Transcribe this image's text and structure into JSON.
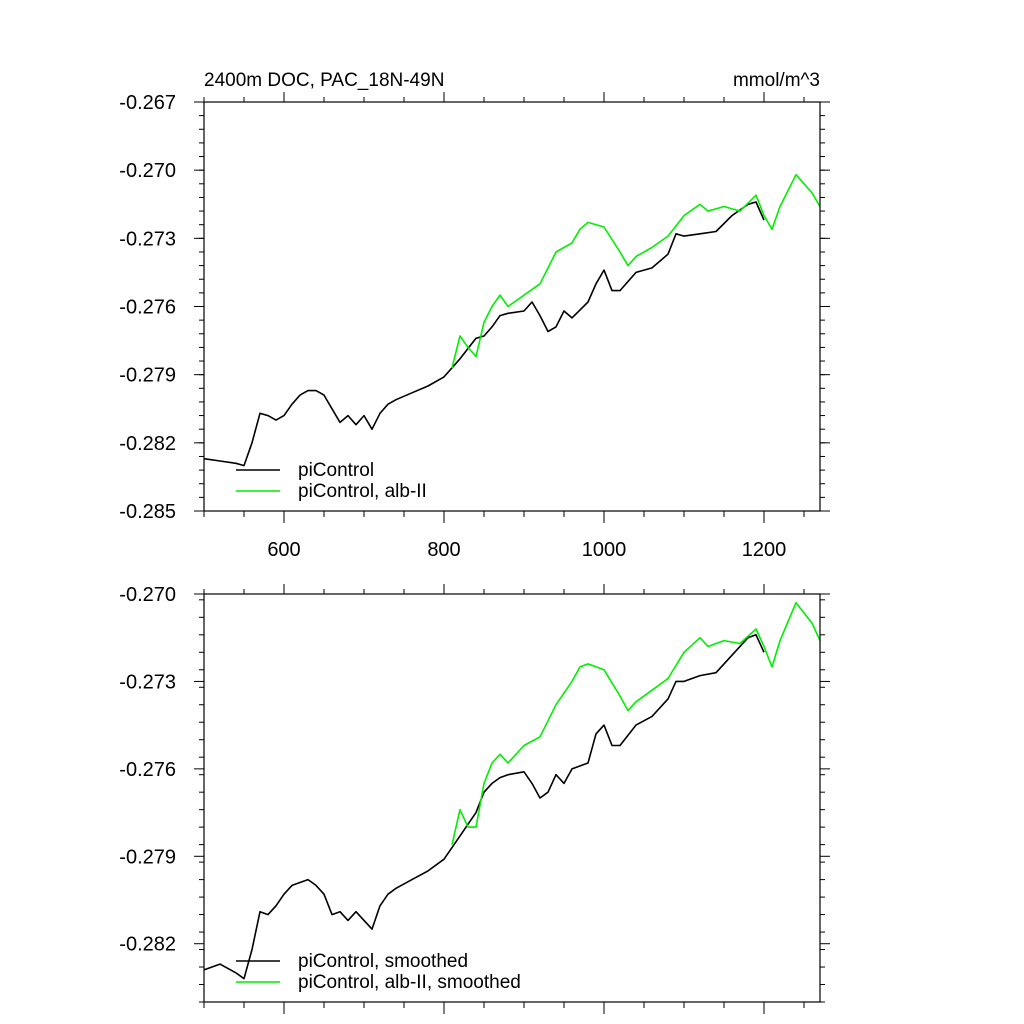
{
  "chart_data": [
    {
      "type": "line",
      "title": "2400m DOC, PAC_18N-49N",
      "units": "mmol/m^3",
      "xlim": [
        500,
        1270
      ],
      "ylim": [
        -0.285,
        -0.267
      ],
      "x_ticks": [
        600,
        800,
        1000,
        1200
      ],
      "x_tick_labels": [
        "600",
        "800",
        "1000",
        "1200"
      ],
      "y_ticks": [
        -0.267,
        -0.27,
        -0.273,
        -0.276,
        -0.279,
        -0.282,
        -0.285
      ],
      "y_tick_labels": [
        "-0.267",
        "-0.270",
        "-0.273",
        "-0.276",
        "-0.279",
        "-0.282",
        "-0.285"
      ],
      "legend": [
        "piControl",
        "piControl, alb-II"
      ],
      "legend_position": "bottom-left",
      "grid": false,
      "series": [
        {
          "name": "piControl",
          "color": "#000000",
          "x": [
            500,
            520,
            540,
            550,
            560,
            570,
            580,
            590,
            600,
            610,
            620,
            630,
            640,
            650,
            660,
            670,
            680,
            690,
            700,
            710,
            720,
            730,
            740,
            760,
            780,
            800,
            820,
            840,
            850,
            860,
            870,
            880,
            900,
            910,
            920,
            930,
            940,
            950,
            960,
            980,
            990,
            1000,
            1010,
            1020,
            1040,
            1060,
            1080,
            1090,
            1100,
            1120,
            1140,
            1160,
            1180,
            1190,
            1200
          ],
          "y": [
            -0.2827,
            -0.2828,
            -0.2829,
            -0.283,
            -0.282,
            -0.2807,
            -0.2808,
            -0.281,
            -0.2808,
            -0.2803,
            -0.2799,
            -0.2797,
            -0.2797,
            -0.2799,
            -0.2805,
            -0.2811,
            -0.2808,
            -0.2812,
            -0.2808,
            -0.2814,
            -0.2807,
            -0.2803,
            -0.2801,
            -0.2798,
            -0.2795,
            -0.2791,
            -0.2783,
            -0.2774,
            -0.2773,
            -0.2769,
            -0.2764,
            -0.2763,
            -0.2762,
            -0.2758,
            -0.2764,
            -0.2771,
            -0.2769,
            -0.2762,
            -0.2765,
            -0.2758,
            -0.275,
            -0.2744,
            -0.2753,
            -0.2753,
            -0.2745,
            -0.2743,
            -0.2737,
            -0.2728,
            -0.2729,
            -0.2728,
            -0.2727,
            -0.272,
            -0.2715,
            -0.2714,
            -0.2722
          ]
        },
        {
          "name": "piControl, alb-II",
          "color": "#00ee00",
          "x": [
            810,
            820,
            830,
            840,
            850,
            860,
            870,
            880,
            900,
            920,
            940,
            960,
            970,
            980,
            1000,
            1020,
            1030,
            1040,
            1060,
            1080,
            1100,
            1120,
            1130,
            1150,
            1170,
            1190,
            1200,
            1210,
            1220,
            1240,
            1260,
            1270
          ],
          "y": [
            -0.2787,
            -0.2773,
            -0.2778,
            -0.2782,
            -0.2767,
            -0.276,
            -0.2755,
            -0.276,
            -0.2755,
            -0.275,
            -0.2736,
            -0.2732,
            -0.2726,
            -0.2723,
            -0.2725,
            -0.2736,
            -0.2742,
            -0.2738,
            -0.2734,
            -0.2729,
            -0.272,
            -0.2715,
            -0.2718,
            -0.2716,
            -0.2718,
            -0.2711,
            -0.272,
            -0.2726,
            -0.2716,
            -0.2702,
            -0.271,
            -0.2716
          ]
        }
      ]
    },
    {
      "type": "line",
      "title": "",
      "xlim": [
        500,
        1270
      ],
      "ylim": [
        -0.284,
        -0.27
      ],
      "x_ticks": [
        600,
        800,
        1000,
        1200
      ],
      "x_tick_labels": [],
      "y_ticks": [
        -0.27,
        -0.273,
        -0.276,
        -0.279,
        -0.282
      ],
      "y_tick_labels": [
        "-0.270",
        "-0.273",
        "-0.276",
        "-0.279",
        "-0.282"
      ],
      "legend": [
        "piControl, smoothed",
        "piControl, alb-II, smoothed"
      ],
      "legend_position": "bottom-left",
      "grid": false,
      "series": [
        {
          "name": "piControl, smoothed",
          "color": "#000000",
          "x": [
            500,
            520,
            540,
            550,
            560,
            570,
            580,
            590,
            600,
            610,
            620,
            630,
            640,
            650,
            660,
            670,
            680,
            690,
            700,
            710,
            720,
            730,
            740,
            760,
            780,
            800,
            820,
            840,
            850,
            860,
            870,
            880,
            900,
            910,
            920,
            930,
            940,
            950,
            960,
            980,
            990,
            1000,
            1010,
            1020,
            1040,
            1060,
            1080,
            1090,
            1100,
            1120,
            1140,
            1160,
            1180,
            1190,
            1200
          ],
          "y": [
            -0.2829,
            -0.2827,
            -0.283,
            -0.2832,
            -0.2822,
            -0.2809,
            -0.281,
            -0.2807,
            -0.2803,
            -0.28,
            -0.2799,
            -0.2798,
            -0.28,
            -0.2803,
            -0.281,
            -0.2809,
            -0.2812,
            -0.2809,
            -0.2812,
            -0.2815,
            -0.2807,
            -0.2803,
            -0.2801,
            -0.2798,
            -0.2795,
            -0.2791,
            -0.2783,
            -0.2775,
            -0.2768,
            -0.2765,
            -0.2763,
            -0.2762,
            -0.2761,
            -0.2765,
            -0.277,
            -0.2768,
            -0.2762,
            -0.2765,
            -0.276,
            -0.2758,
            -0.2748,
            -0.2745,
            -0.2752,
            -0.2752,
            -0.2745,
            -0.2742,
            -0.2736,
            -0.273,
            -0.273,
            -0.2728,
            -0.2727,
            -0.2721,
            -0.2715,
            -0.2714,
            -0.272
          ]
        },
        {
          "name": "piControl, alb-II, smoothed",
          "color": "#00ee00",
          "x": [
            810,
            820,
            830,
            840,
            850,
            860,
            870,
            880,
            900,
            920,
            940,
            960,
            970,
            980,
            1000,
            1020,
            1030,
            1040,
            1060,
            1080,
            1100,
            1120,
            1130,
            1150,
            1170,
            1190,
            1200,
            1210,
            1220,
            1240,
            1260,
            1270
          ],
          "y": [
            -0.2786,
            -0.2774,
            -0.278,
            -0.278,
            -0.2765,
            -0.2758,
            -0.2755,
            -0.2758,
            -0.2752,
            -0.2749,
            -0.2738,
            -0.273,
            -0.2725,
            -0.2724,
            -0.2726,
            -0.2735,
            -0.274,
            -0.2737,
            -0.2733,
            -0.2729,
            -0.272,
            -0.2715,
            -0.2718,
            -0.2716,
            -0.2717,
            -0.2712,
            -0.2718,
            -0.2725,
            -0.2716,
            -0.2703,
            -0.271,
            -0.2716
          ]
        }
      ]
    }
  ]
}
